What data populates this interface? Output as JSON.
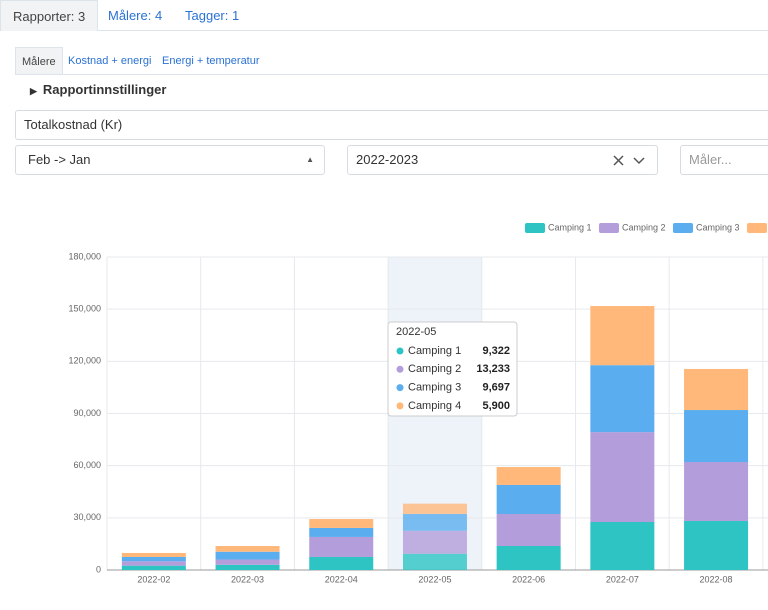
{
  "tabs": [
    "Rapporter: 3",
    "Målere: 4",
    "Tagger: 1"
  ],
  "subtabs": [
    "Målere",
    "Kostnad + energi",
    "Energi + temperatur"
  ],
  "settings_toggle": "Rapportinnstillinger",
  "metric_select": "Totalkostnad (Kr)",
  "period_select": "Feb -> Jan",
  "year_select": "2022-2023",
  "meter_placeholder": "Måler...",
  "chart_data": {
    "type": "stacked_bar",
    "categories": [
      "2022-02",
      "2022-03",
      "2022-04",
      "2022-05",
      "2022-06",
      "2022-07",
      "2022-08"
    ],
    "series": [
      {
        "name": "Camping 1",
        "color": "#2ec4c4",
        "values": [
          2500,
          3000,
          7500,
          9322,
          13800,
          27600,
          28200
        ],
        "value_labels": [
          null,
          null,
          null,
          "9,322",
          null,
          null,
          null
        ]
      },
      {
        "name": "Camping 2",
        "color": "#b39ddb",
        "values": [
          2500,
          3000,
          11500,
          13233,
          18400,
          51700,
          33900
        ],
        "value_labels": [
          null,
          null,
          null,
          "13,233",
          null,
          null,
          null
        ]
      },
      {
        "name": "Camping 3",
        "color": "#5aaeef",
        "values": [
          2500,
          4500,
          5200,
          9697,
          16700,
          38500,
          29900
        ],
        "value_labels": [
          null,
          null,
          null,
          "9,697",
          null,
          null,
          null
        ]
      },
      {
        "name": "Camping 4",
        "color": "#ffb77a",
        "values": [
          2300,
          3300,
          5100,
          5900,
          10300,
          34000,
          23600
        ],
        "value_labels": [
          null,
          null,
          null,
          "5,900",
          null,
          null,
          null
        ]
      }
    ],
    "ylim": [
      0,
      180000
    ],
    "yticks": [
      0,
      {
        "value": 30000,
        "label": "30,000"
      },
      {
        "value": 60000,
        "label": "60,000"
      },
      {
        "value": 90000,
        "label": "90,000"
      },
      {
        "value": 120000,
        "label": "120,000"
      },
      {
        "value": 150000,
        "label": "150,000"
      },
      {
        "value": 180000,
        "label": "180,000"
      }
    ],
    "grid": true,
    "legend": "top-right"
  }
}
